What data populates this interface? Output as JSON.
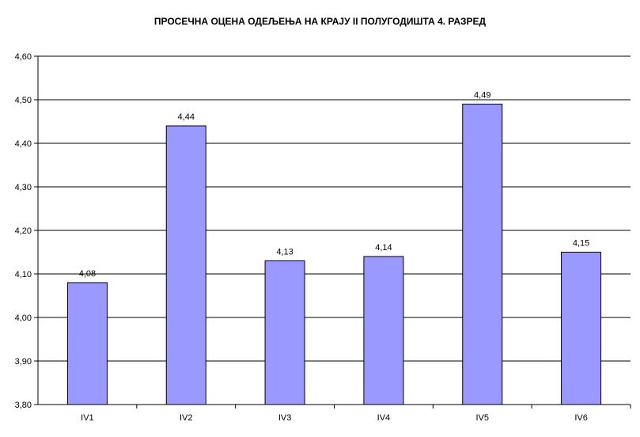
{
  "chart_data": {
    "type": "bar",
    "title": "ПРОСЕЧНА ОЦЕНА ОДЕЉЕЊА НА КРАЈУ  II ПОЛУГОДИШТА 4. РАЗРЕД",
    "categories": [
      "IV1",
      "IV2",
      "IV3",
      "IV4",
      "IV5",
      "IV6"
    ],
    "values": [
      4.08,
      4.44,
      4.13,
      4.14,
      4.49,
      4.15
    ],
    "value_labels": [
      "4,08",
      "4,44",
      "4,13",
      "4,14",
      "4,49",
      "4,15"
    ],
    "ylim": [
      3.8,
      4.6
    ],
    "y_ticks": [
      "3,80",
      "3,90",
      "4,00",
      "4,10",
      "4,20",
      "4,30",
      "4,40",
      "4,50",
      "4,60"
    ],
    "xlabel": "",
    "ylabel": "",
    "grid": true,
    "legend": "none",
    "colors": {
      "bar_fill": "#9999ff",
      "bar_stroke": "#000000",
      "grid": "#000000"
    }
  }
}
